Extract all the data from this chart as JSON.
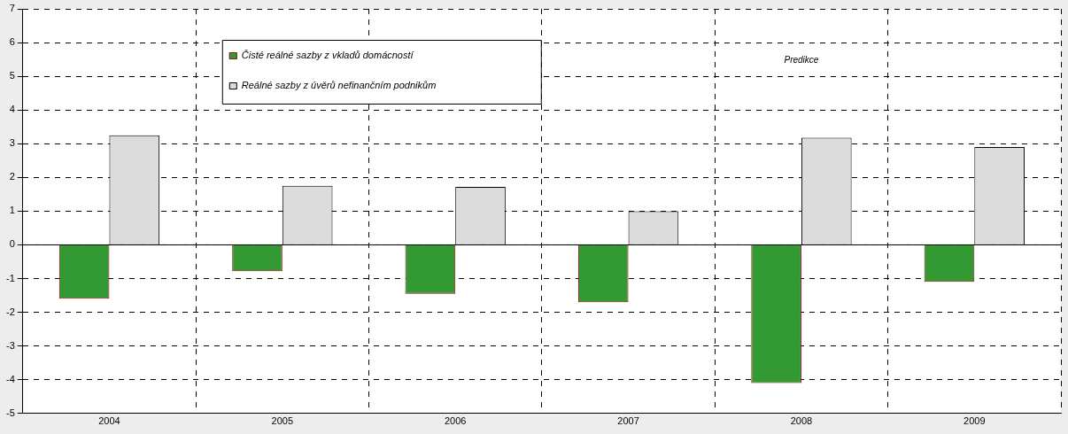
{
  "chart_data": {
    "type": "bar",
    "categories": [
      "2004",
      "2005",
      "2006",
      "2007",
      "2008",
      "2009"
    ],
    "series": [
      {
        "name": "Čisté reálné sazby z vkladů domácností",
        "color": "#339933",
        "values": [
          -1.6,
          -0.78,
          -1.45,
          -1.7,
          -4.1,
          -1.1
        ]
      },
      {
        "name": "Reálné sazby z úvěrů nefinančním podnikům",
        "color": "#dcdcdc",
        "values": [
          3.25,
          1.75,
          1.72,
          1.0,
          3.18,
          2.9
        ]
      }
    ],
    "ylim": [
      -5,
      7
    ],
    "yticks": [
      -5,
      -4,
      -3,
      -2,
      -1,
      0,
      1,
      2,
      3,
      4,
      5,
      6,
      7
    ],
    "grid": true,
    "legend": "top left",
    "annotations": [
      "Predikce"
    ]
  }
}
